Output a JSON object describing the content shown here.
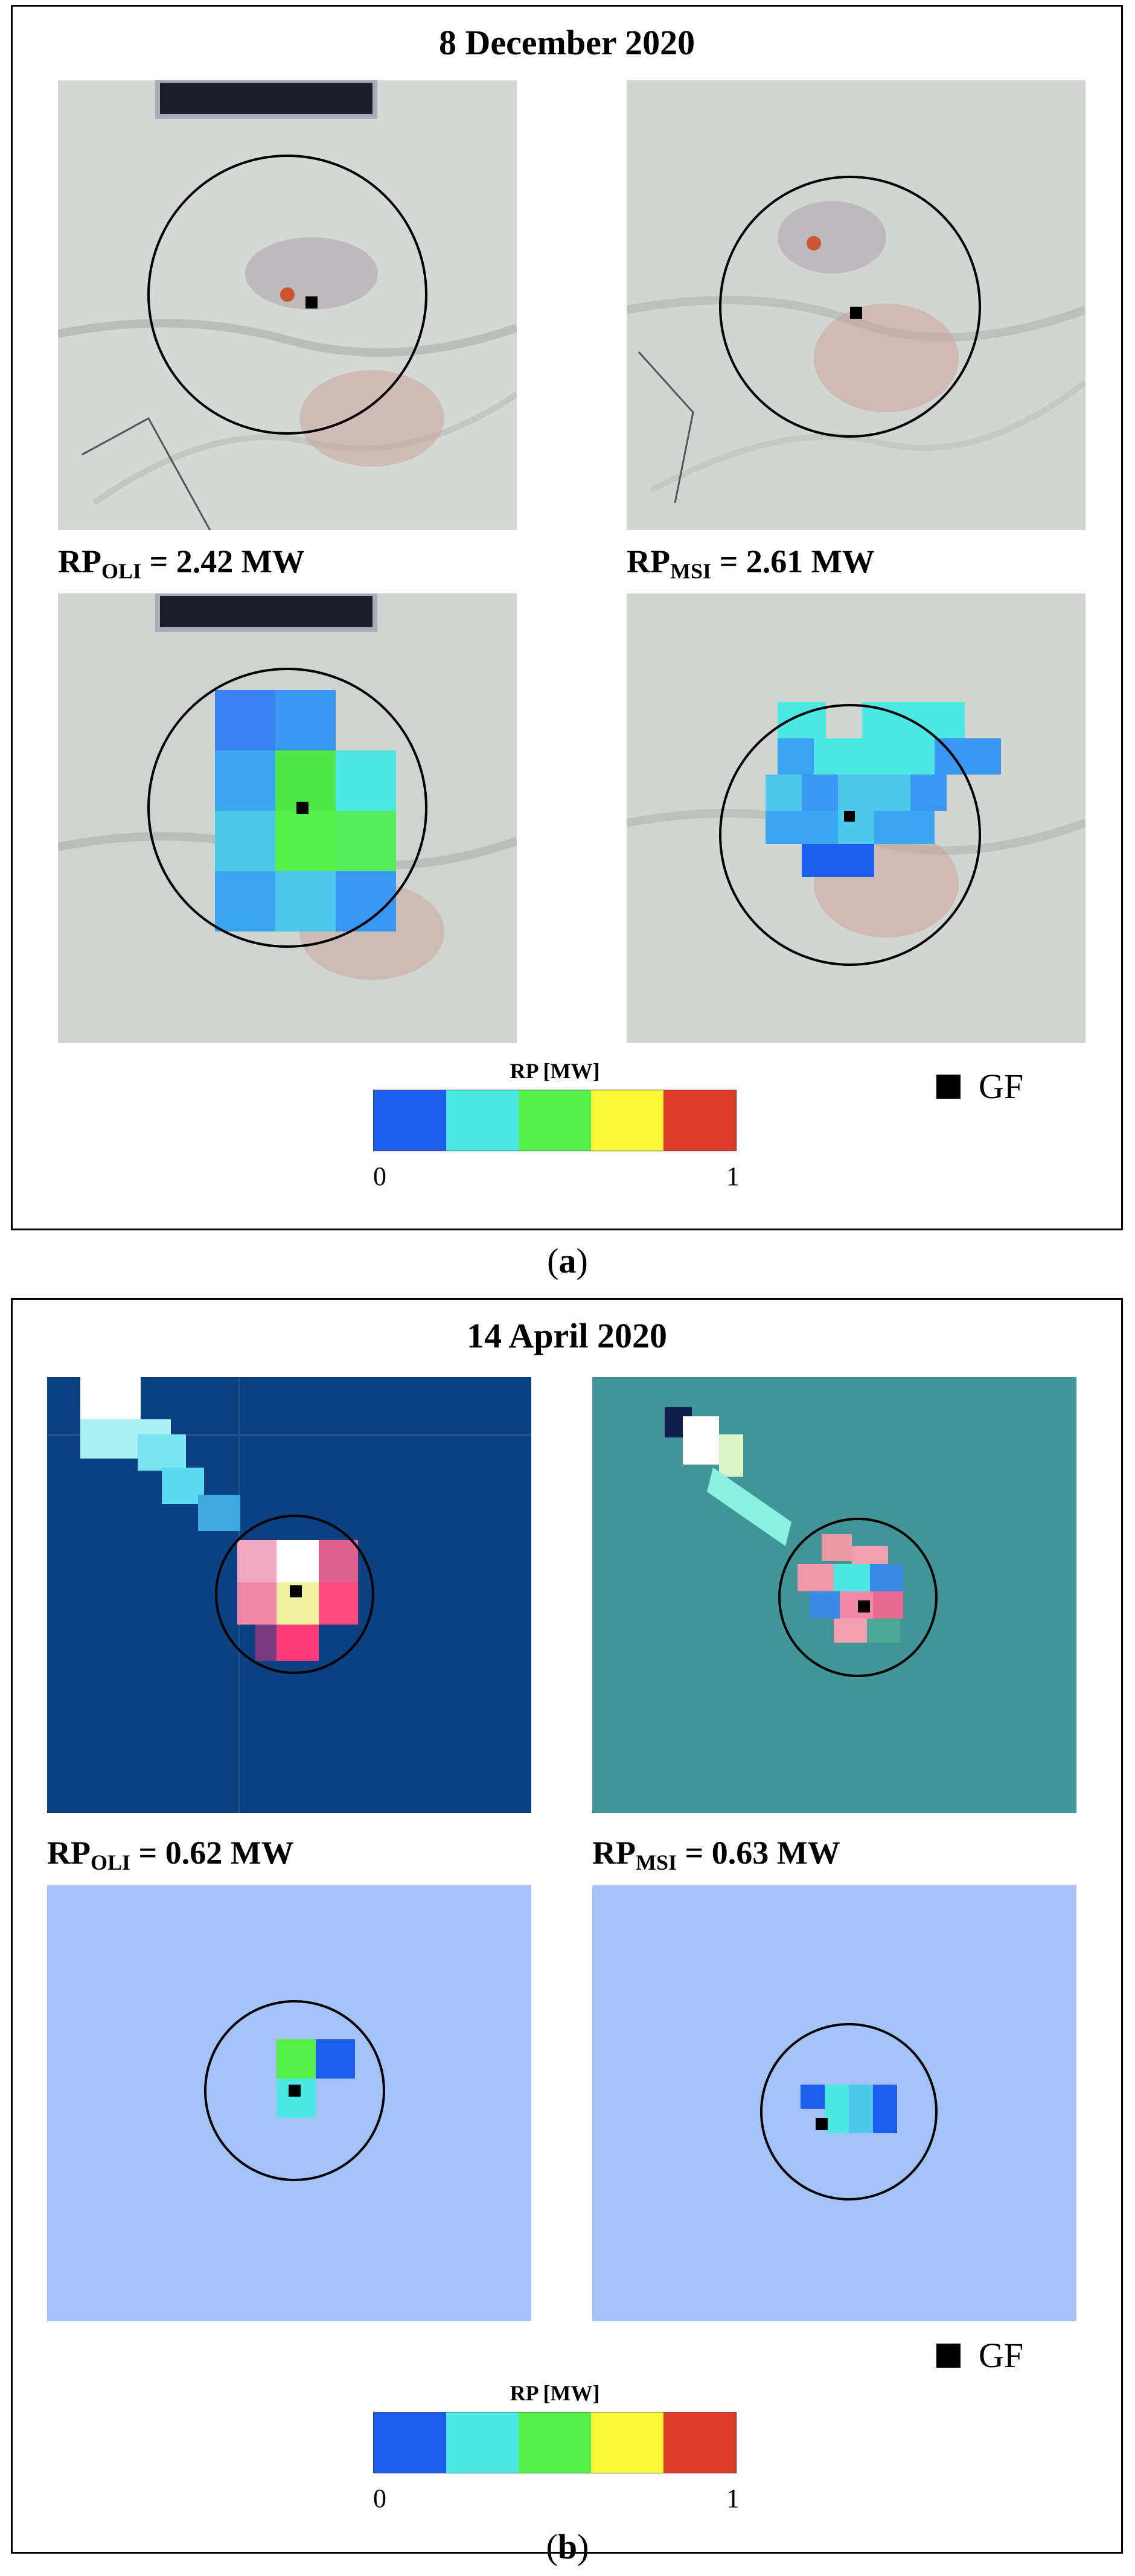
{
  "panel_a": {
    "title": "8 December 2020",
    "rp_oli_prefix": "RP",
    "rp_oli_sub": "OLI",
    "rp_oli_value": " = 2.42 MW",
    "rp_msi_prefix": "RP",
    "rp_msi_sub": "MSI",
    "rp_msi_value": " = 2.61 MW"
  },
  "panel_b": {
    "title": "14 April 2020",
    "rp_oli_prefix": "RP",
    "rp_oli_sub": "OLI",
    "rp_oli_value": " = 0.62 MW",
    "rp_msi_prefix": "RP",
    "rp_msi_sub": "MSI",
    "rp_msi_value": " = 0.63 MW"
  },
  "legend": {
    "gf_label": "GF",
    "colorbar_title": "RP [MW]",
    "colorbar_min": "0",
    "colorbar_max": "1",
    "colorbar_colors": [
      "#1e5cf0",
      "#4ee8e4",
      "#55f04a",
      "#f8f83a",
      "#e03a2a"
    ]
  },
  "captions": {
    "a_open": "(",
    "a_letter": "a",
    "a_close": ")",
    "b_open": "(",
    "b_letter": "b",
    "b_close": ")"
  }
}
